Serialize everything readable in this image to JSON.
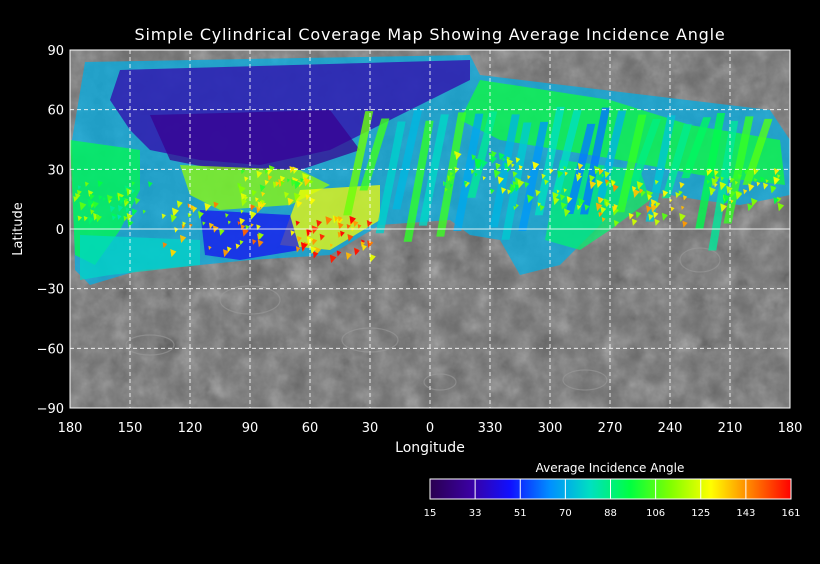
{
  "title": "Simple Cylindrical Coverage Map Showing Average Incidence Angle",
  "axes": {
    "x_label": "Longitude",
    "y_label": "Latitude",
    "x_ticks": [
      "180",
      "150",
      "120",
      "90",
      "60",
      "30",
      "0",
      "330",
      "300",
      "270",
      "240",
      "210",
      "180"
    ],
    "y_ticks": [
      "90",
      "60",
      "30",
      "0",
      "−30",
      "−60",
      "−90"
    ]
  },
  "colorbar": {
    "title": "Average Incidence Angle",
    "labels": [
      "15",
      "33",
      "51",
      "70",
      "88",
      "106",
      "125",
      "143",
      "161"
    ],
    "min": 15,
    "max": 161,
    "stops": [
      "#2a0050",
      "#3a00a0",
      "#1010ff",
      "#0090ff",
      "#00e0c0",
      "#00ff40",
      "#80ff00",
      "#ffff00",
      "#ff8000",
      "#ff0000"
    ]
  },
  "map_colors": {
    "background": "#000000",
    "grid": "#ffffff",
    "terrain_base": "#6d6d6d"
  },
  "coverage": {
    "visible_lat_range": [
      -30,
      90
    ],
    "dominant_angles": [
      33,
      51,
      70,
      88,
      106,
      125,
      143
    ]
  }
}
